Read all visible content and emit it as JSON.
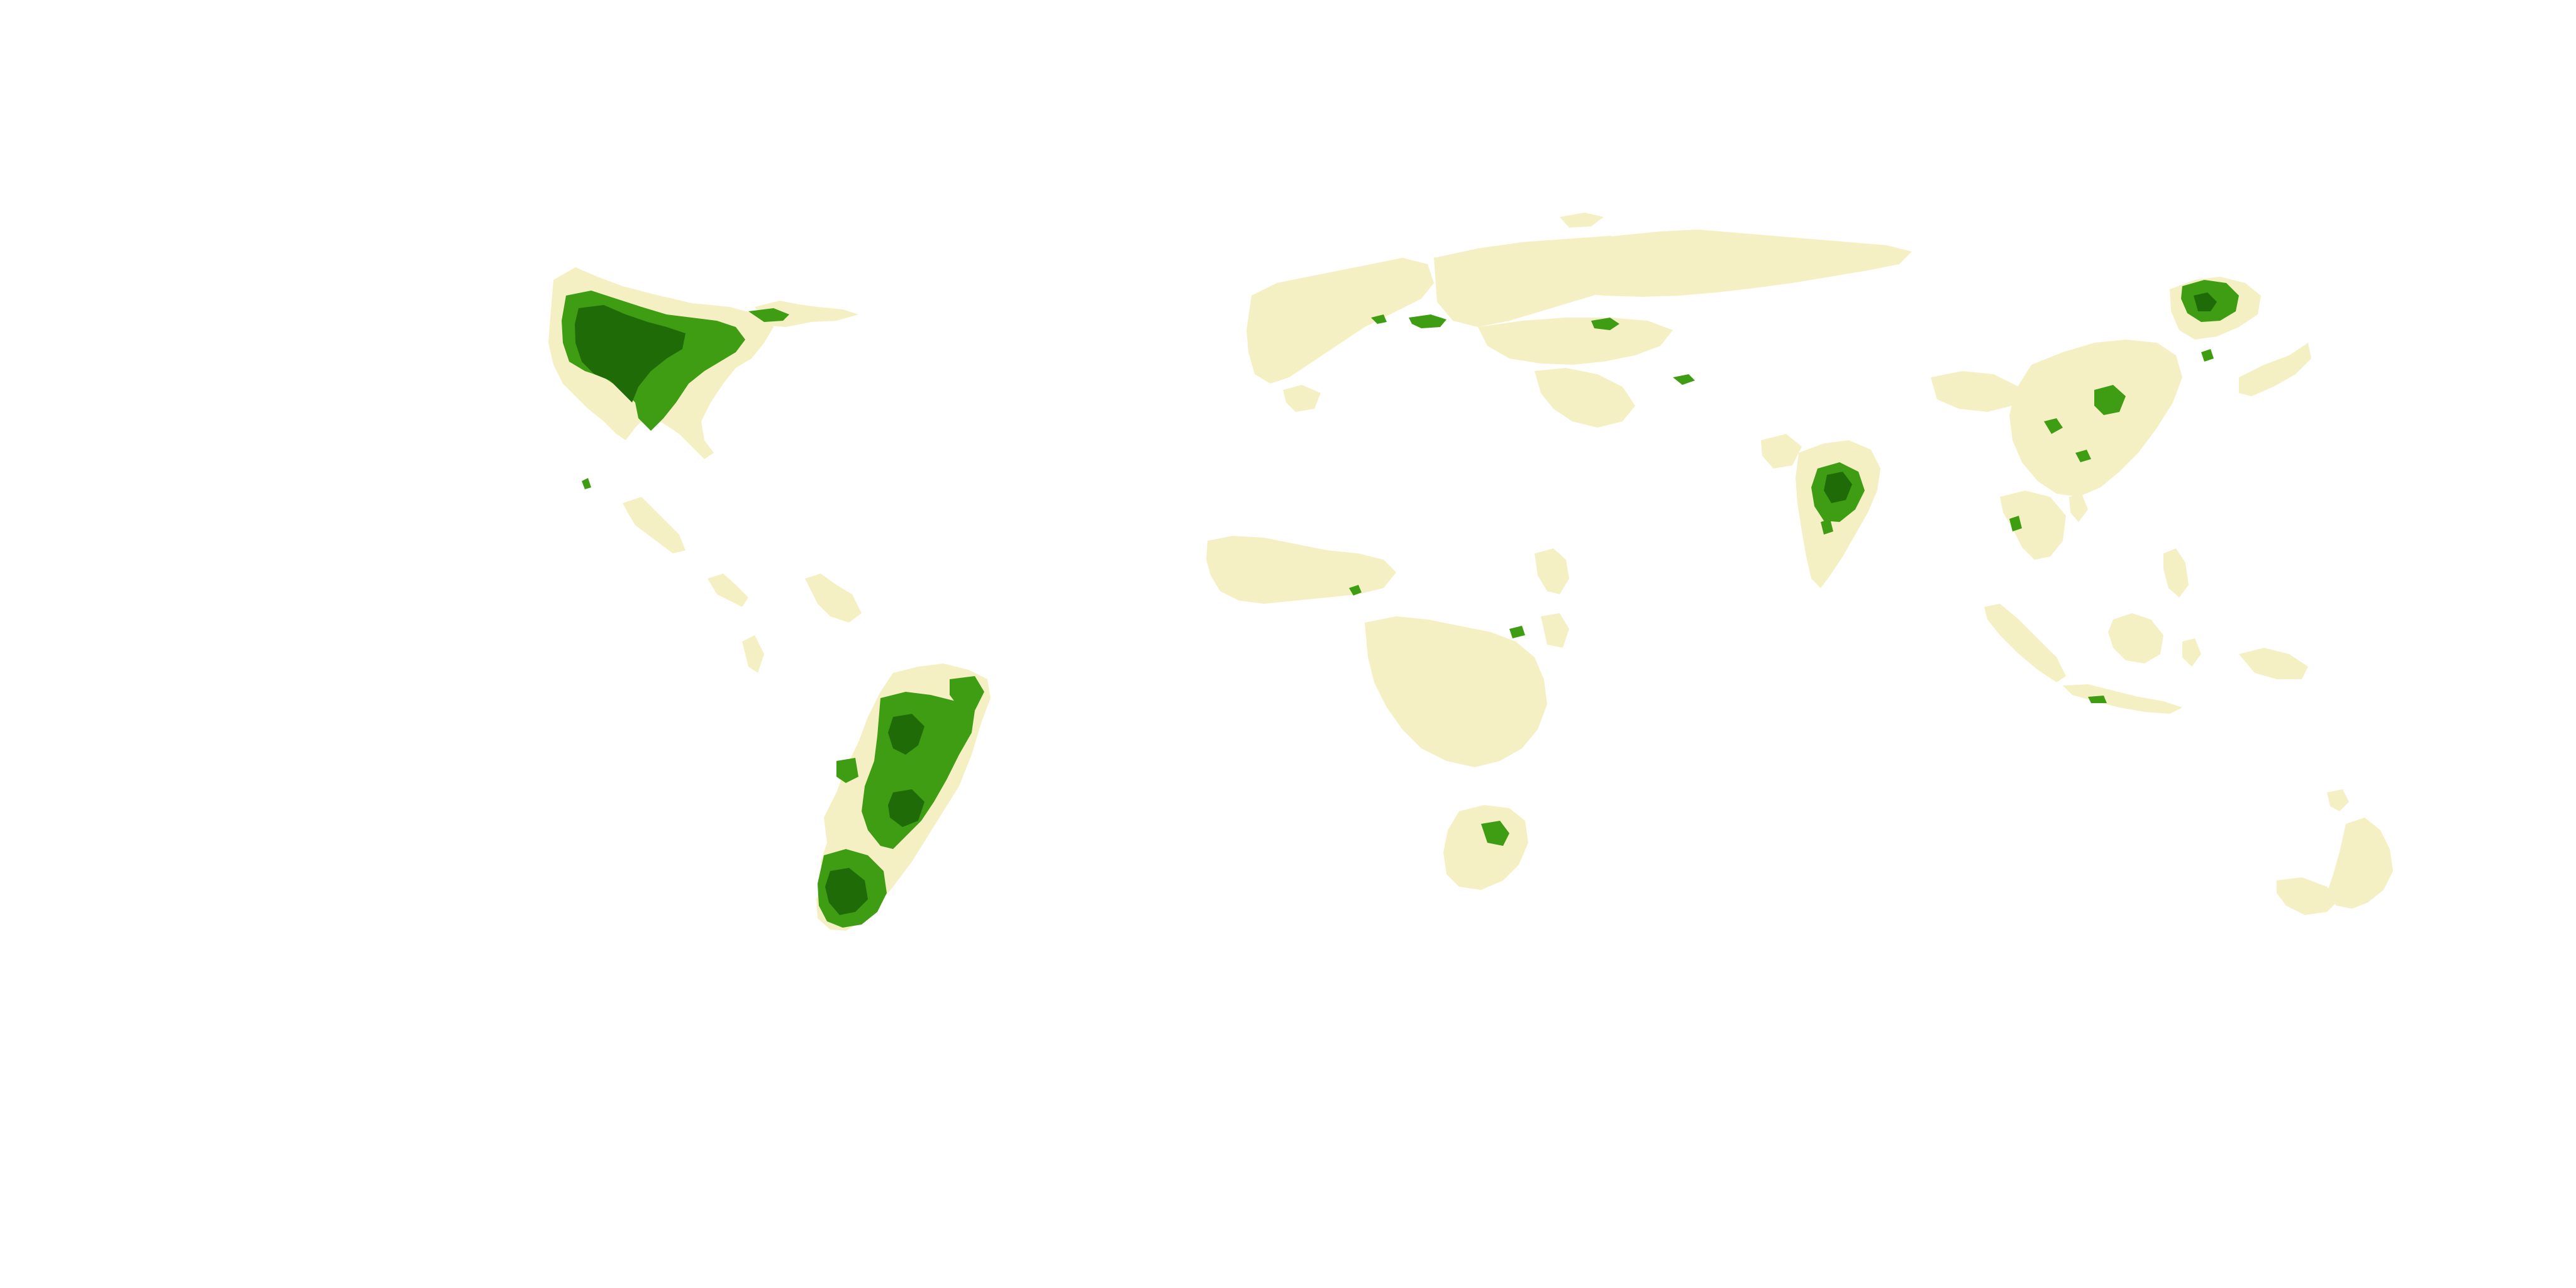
{
  "map": {
    "projection": "equirectangular",
    "background": "#ffffff",
    "legend": "none",
    "text": "none",
    "color_classes": [
      {
        "level": 0,
        "color": "#f5f0c3",
        "meaning": "low"
      },
      {
        "level": 1,
        "color": "#3f9d14",
        "meaning": "medium"
      },
      {
        "level": 2,
        "color": "#1e6b08",
        "meaning": "high"
      }
    ],
    "regions": [
      {
        "id": "north-america",
        "has_high_values": true
      },
      {
        "id": "south-america",
        "has_high_values": true
      },
      {
        "id": "europe",
        "has_high_values": false
      },
      {
        "id": "russia-central-asia",
        "has_high_values": false
      },
      {
        "id": "africa",
        "has_high_values": false
      },
      {
        "id": "india",
        "has_high_values": true
      },
      {
        "id": "china-east-asia",
        "has_high_values": true
      },
      {
        "id": "southeast-asia",
        "has_high_values": false
      },
      {
        "id": "australia",
        "has_high_values": false
      }
    ]
  }
}
